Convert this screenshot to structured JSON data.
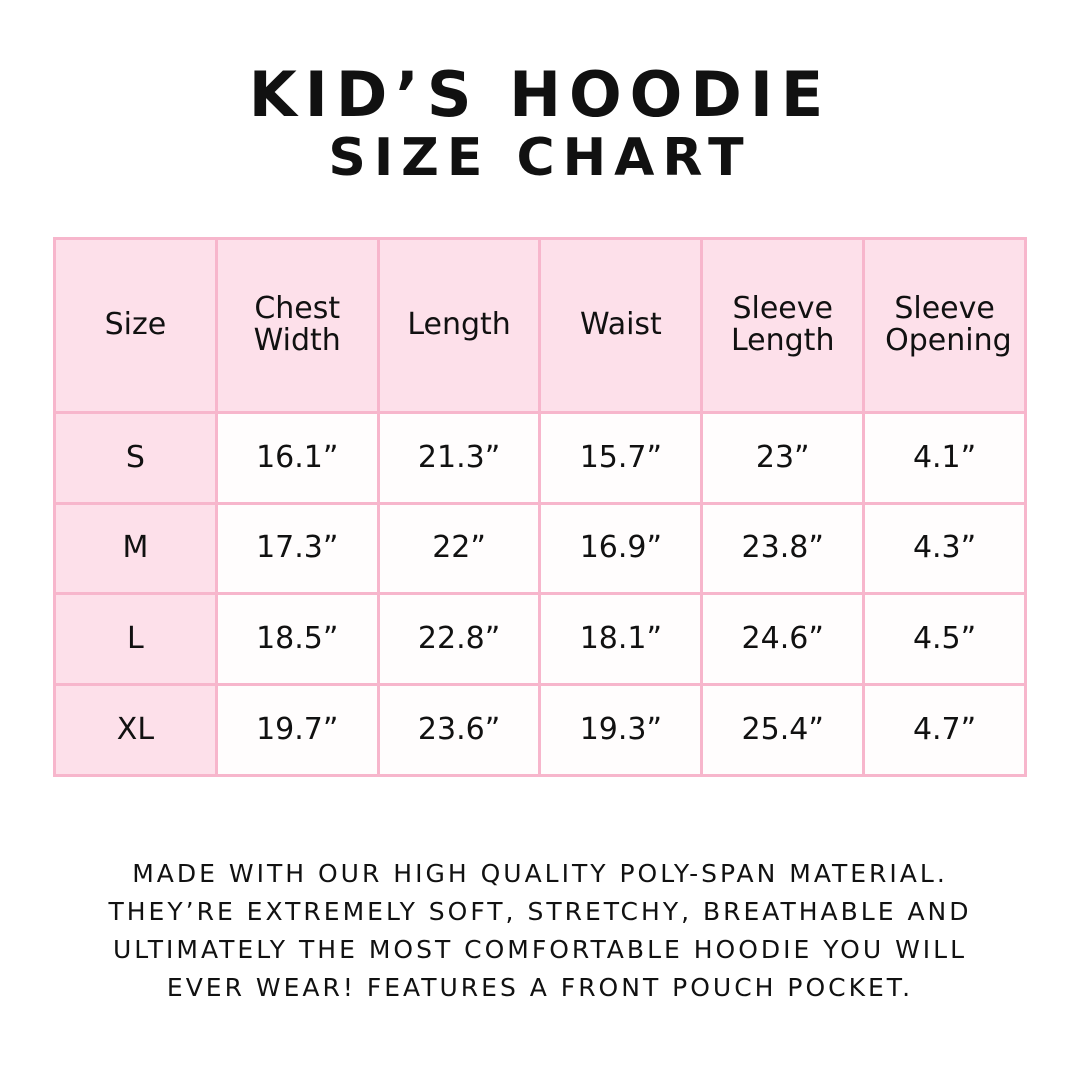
{
  "header": {
    "title": "KID’S HOODIE",
    "subtitle": "SIZE CHART"
  },
  "table": {
    "columns": [
      "Size",
      "Chest Width",
      "Length",
      "Waist",
      "Sleeve Length",
      "Sleeve Opening"
    ],
    "rows": [
      [
        "S",
        "16.1”",
        "21.3”",
        "15.7”",
        "23”",
        "4.1”"
      ],
      [
        "M",
        "17.3”",
        "22”",
        "16.9”",
        "23.8”",
        "4.3”"
      ],
      [
        "L",
        "18.5”",
        "22.8”",
        "18.1”",
        "24.6”",
        "4.5”"
      ],
      [
        "XL",
        "19.7”",
        "23.6”",
        "19.3”",
        "25.4”",
        "4.7”"
      ]
    ]
  },
  "footer": {
    "lines": [
      "MADE WITH OUR HIGH QUALITY POLY-SPAN MATERIAL.",
      "THEY’RE EXTREMELY SOFT, STRETCHY, BREATHABLE AND",
      "ULTIMATELY THE MOST COMFORTABLE HOODIE YOU WILL",
      "EVER WEAR! FEATURES A FRONT POUCH POCKET."
    ]
  }
}
